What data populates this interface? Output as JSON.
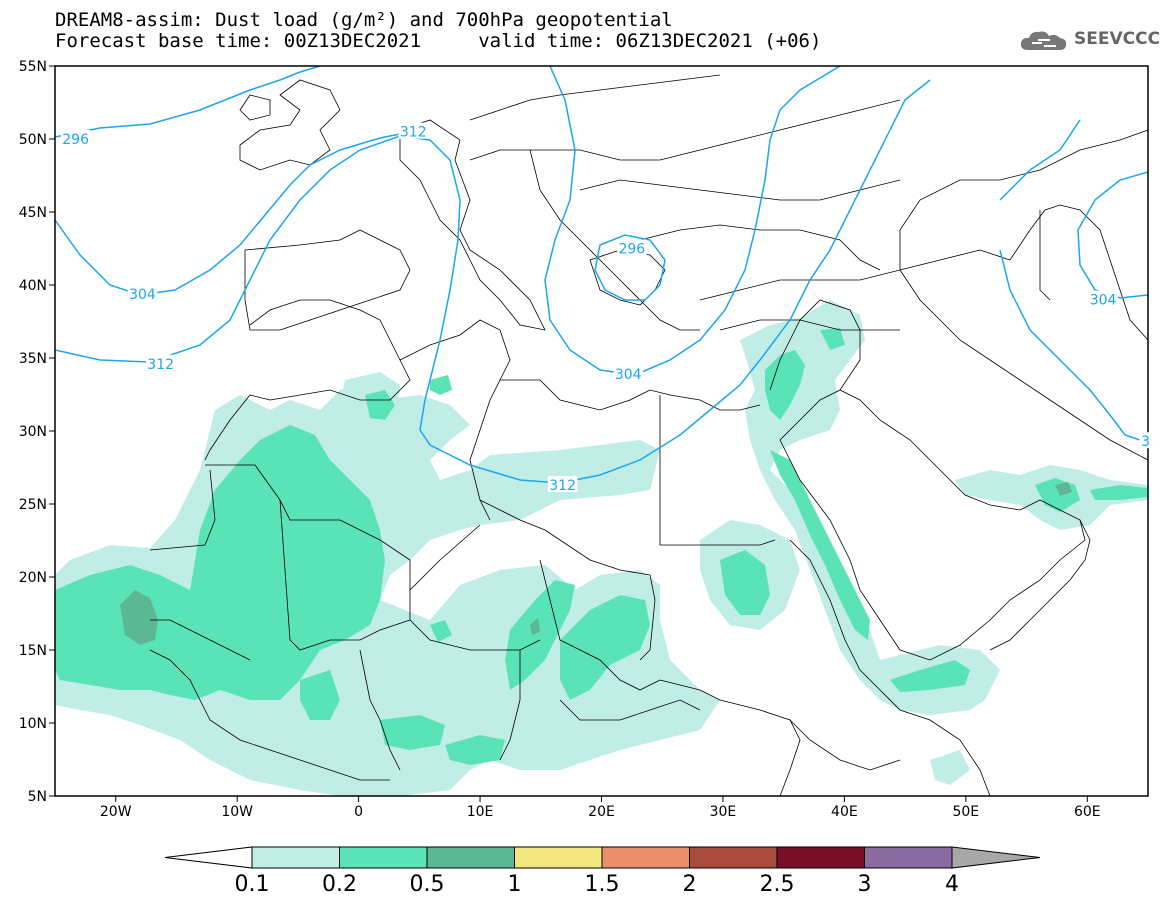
{
  "header": {
    "line1": "DREAM8-assim: Dust load (g/m²) and 700hPa geopotential",
    "line2": "Forecast base time: 00Z13DEC2021     valid time: 06Z13DEC2021 (+06)"
  },
  "logo": {
    "text": "SEEVCCC",
    "icon": "cloud-icon"
  },
  "map": {
    "lon_range": [
      -25,
      65
    ],
    "lat_range": [
      5,
      55
    ],
    "lon_ticks": [
      {
        "value": -20,
        "label": "20W"
      },
      {
        "value": -10,
        "label": "10W"
      },
      {
        "value": 0,
        "label": "0"
      },
      {
        "value": 10,
        "label": "10E"
      },
      {
        "value": 20,
        "label": "20E"
      },
      {
        "value": 30,
        "label": "30E"
      },
      {
        "value": 40,
        "label": "40E"
      },
      {
        "value": 50,
        "label": "50E"
      },
      {
        "value": 60,
        "label": "60E"
      }
    ],
    "lat_ticks": [
      {
        "value": 55,
        "label": "55N"
      },
      {
        "value": 50,
        "label": "50N"
      },
      {
        "value": 45,
        "label": "45N"
      },
      {
        "value": 40,
        "label": "40N"
      },
      {
        "value": 35,
        "label": "35N"
      },
      {
        "value": 30,
        "label": "30N"
      },
      {
        "value": 25,
        "label": "25N"
      },
      {
        "value": 20,
        "label": "20N"
      },
      {
        "value": 15,
        "label": "15N"
      },
      {
        "value": 10,
        "label": "10N"
      },
      {
        "value": 5,
        "label": "5N"
      }
    ],
    "contour_labels": [
      {
        "text": "296",
        "lon": -23.3,
        "lat": 50.0
      },
      {
        "text": "312",
        "lon": 4.5,
        "lat": 50.5
      },
      {
        "text": "296",
        "lon": 22.5,
        "lat": 42.5
      },
      {
        "text": "304",
        "lon": -17.8,
        "lat": 39.4
      },
      {
        "text": "312",
        "lon": -16.3,
        "lat": 34.6
      },
      {
        "text": "304",
        "lon": 22.2,
        "lat": 33.9
      },
      {
        "text": "312",
        "lon": 16.8,
        "lat": 26.3
      },
      {
        "text": "304",
        "lon": 61.3,
        "lat": 39.0
      },
      {
        "text": "3",
        "lon": 64.8,
        "lat": 29.3
      }
    ]
  },
  "colorbar": {
    "levels": [
      "0.1",
      "0.2",
      "0.5",
      "1",
      "1.5",
      "2",
      "2.5",
      "3",
      "4"
    ],
    "colors": [
      "#ffffff",
      "#c0ede6",
      "#5be3b8",
      "#5cb894",
      "#f2e67c",
      "#e8906a",
      "#a94a3e",
      "#7a0f2a",
      "#8a6aa0",
      "#a8a8a8"
    ]
  }
}
